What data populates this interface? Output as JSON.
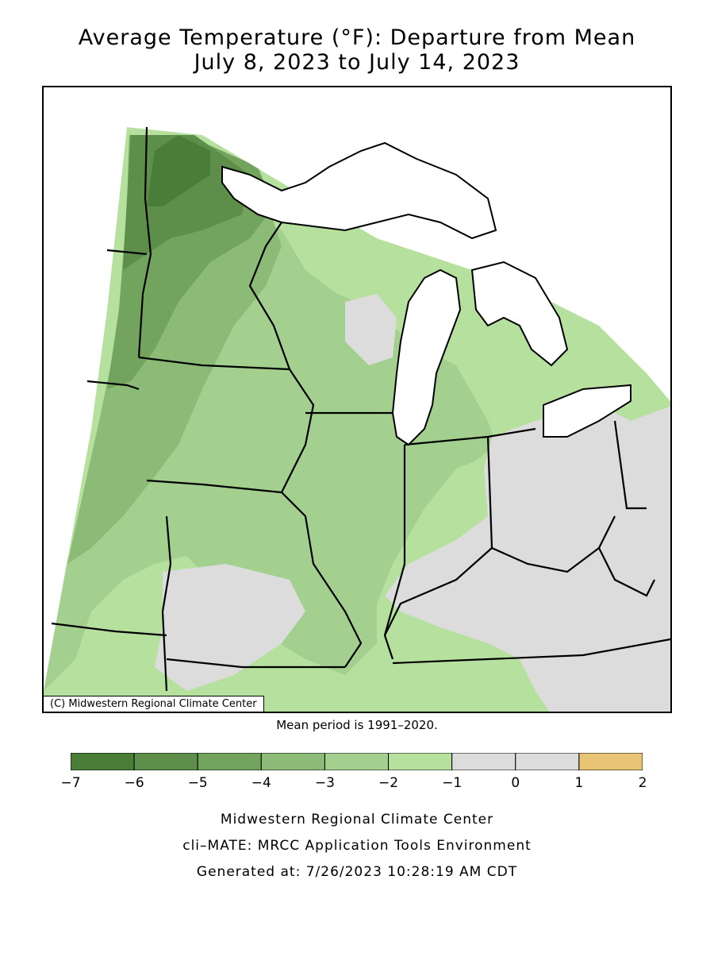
{
  "header": {
    "title_line1": "Average Temperature (°F): Departure from Mean",
    "title_line2": "July 8, 2023 to July 14, 2023"
  },
  "map": {
    "copyright": "(C) Midwestern Regional Climate Center",
    "mean_period": "Mean period is 1991–2020.",
    "colors": {
      "minus7_to_minus6": "#4a7d37",
      "minus6_to_minus5": "#5e8f4a",
      "minus5_to_minus4": "#72a45e",
      "minus4_to_minus3": "#8cba77",
      "minus3_to_minus2": "#a3d08f",
      "minus2_to_minus1": "#b6e09e",
      "minus1_to_1": "#dcdcdc",
      "plus1_to_plus2": "#e8c475"
    }
  },
  "legend": {
    "bins": [
      {
        "from": -7,
        "to": -6,
        "color": "#4a7d37"
      },
      {
        "from": -6,
        "to": -5,
        "color": "#5e8f4a"
      },
      {
        "from": -5,
        "to": -4,
        "color": "#72a45e"
      },
      {
        "from": -4,
        "to": -3,
        "color": "#8cba77"
      },
      {
        "from": -3,
        "to": -2,
        "color": "#a3d08f"
      },
      {
        "from": -2,
        "to": -1,
        "color": "#b6e09e"
      },
      {
        "from": -1,
        "to": 0,
        "color": "#dcdcdc"
      },
      {
        "from": 0,
        "to": 1,
        "color": "#dcdcdc"
      },
      {
        "from": 1,
        "to": 2,
        "color": "#e8c475"
      }
    ],
    "tick_labels": [
      "−7",
      "−6",
      "−5",
      "−4",
      "−3",
      "−2",
      "−1",
      "0",
      "1",
      "2"
    ]
  },
  "footer": {
    "line1": "Midwestern Regional Climate Center",
    "line2": "cli–MATE: MRCC Application Tools Environment",
    "line3": "Generated at: 7/26/2023 10:28:19 AM CDT"
  }
}
